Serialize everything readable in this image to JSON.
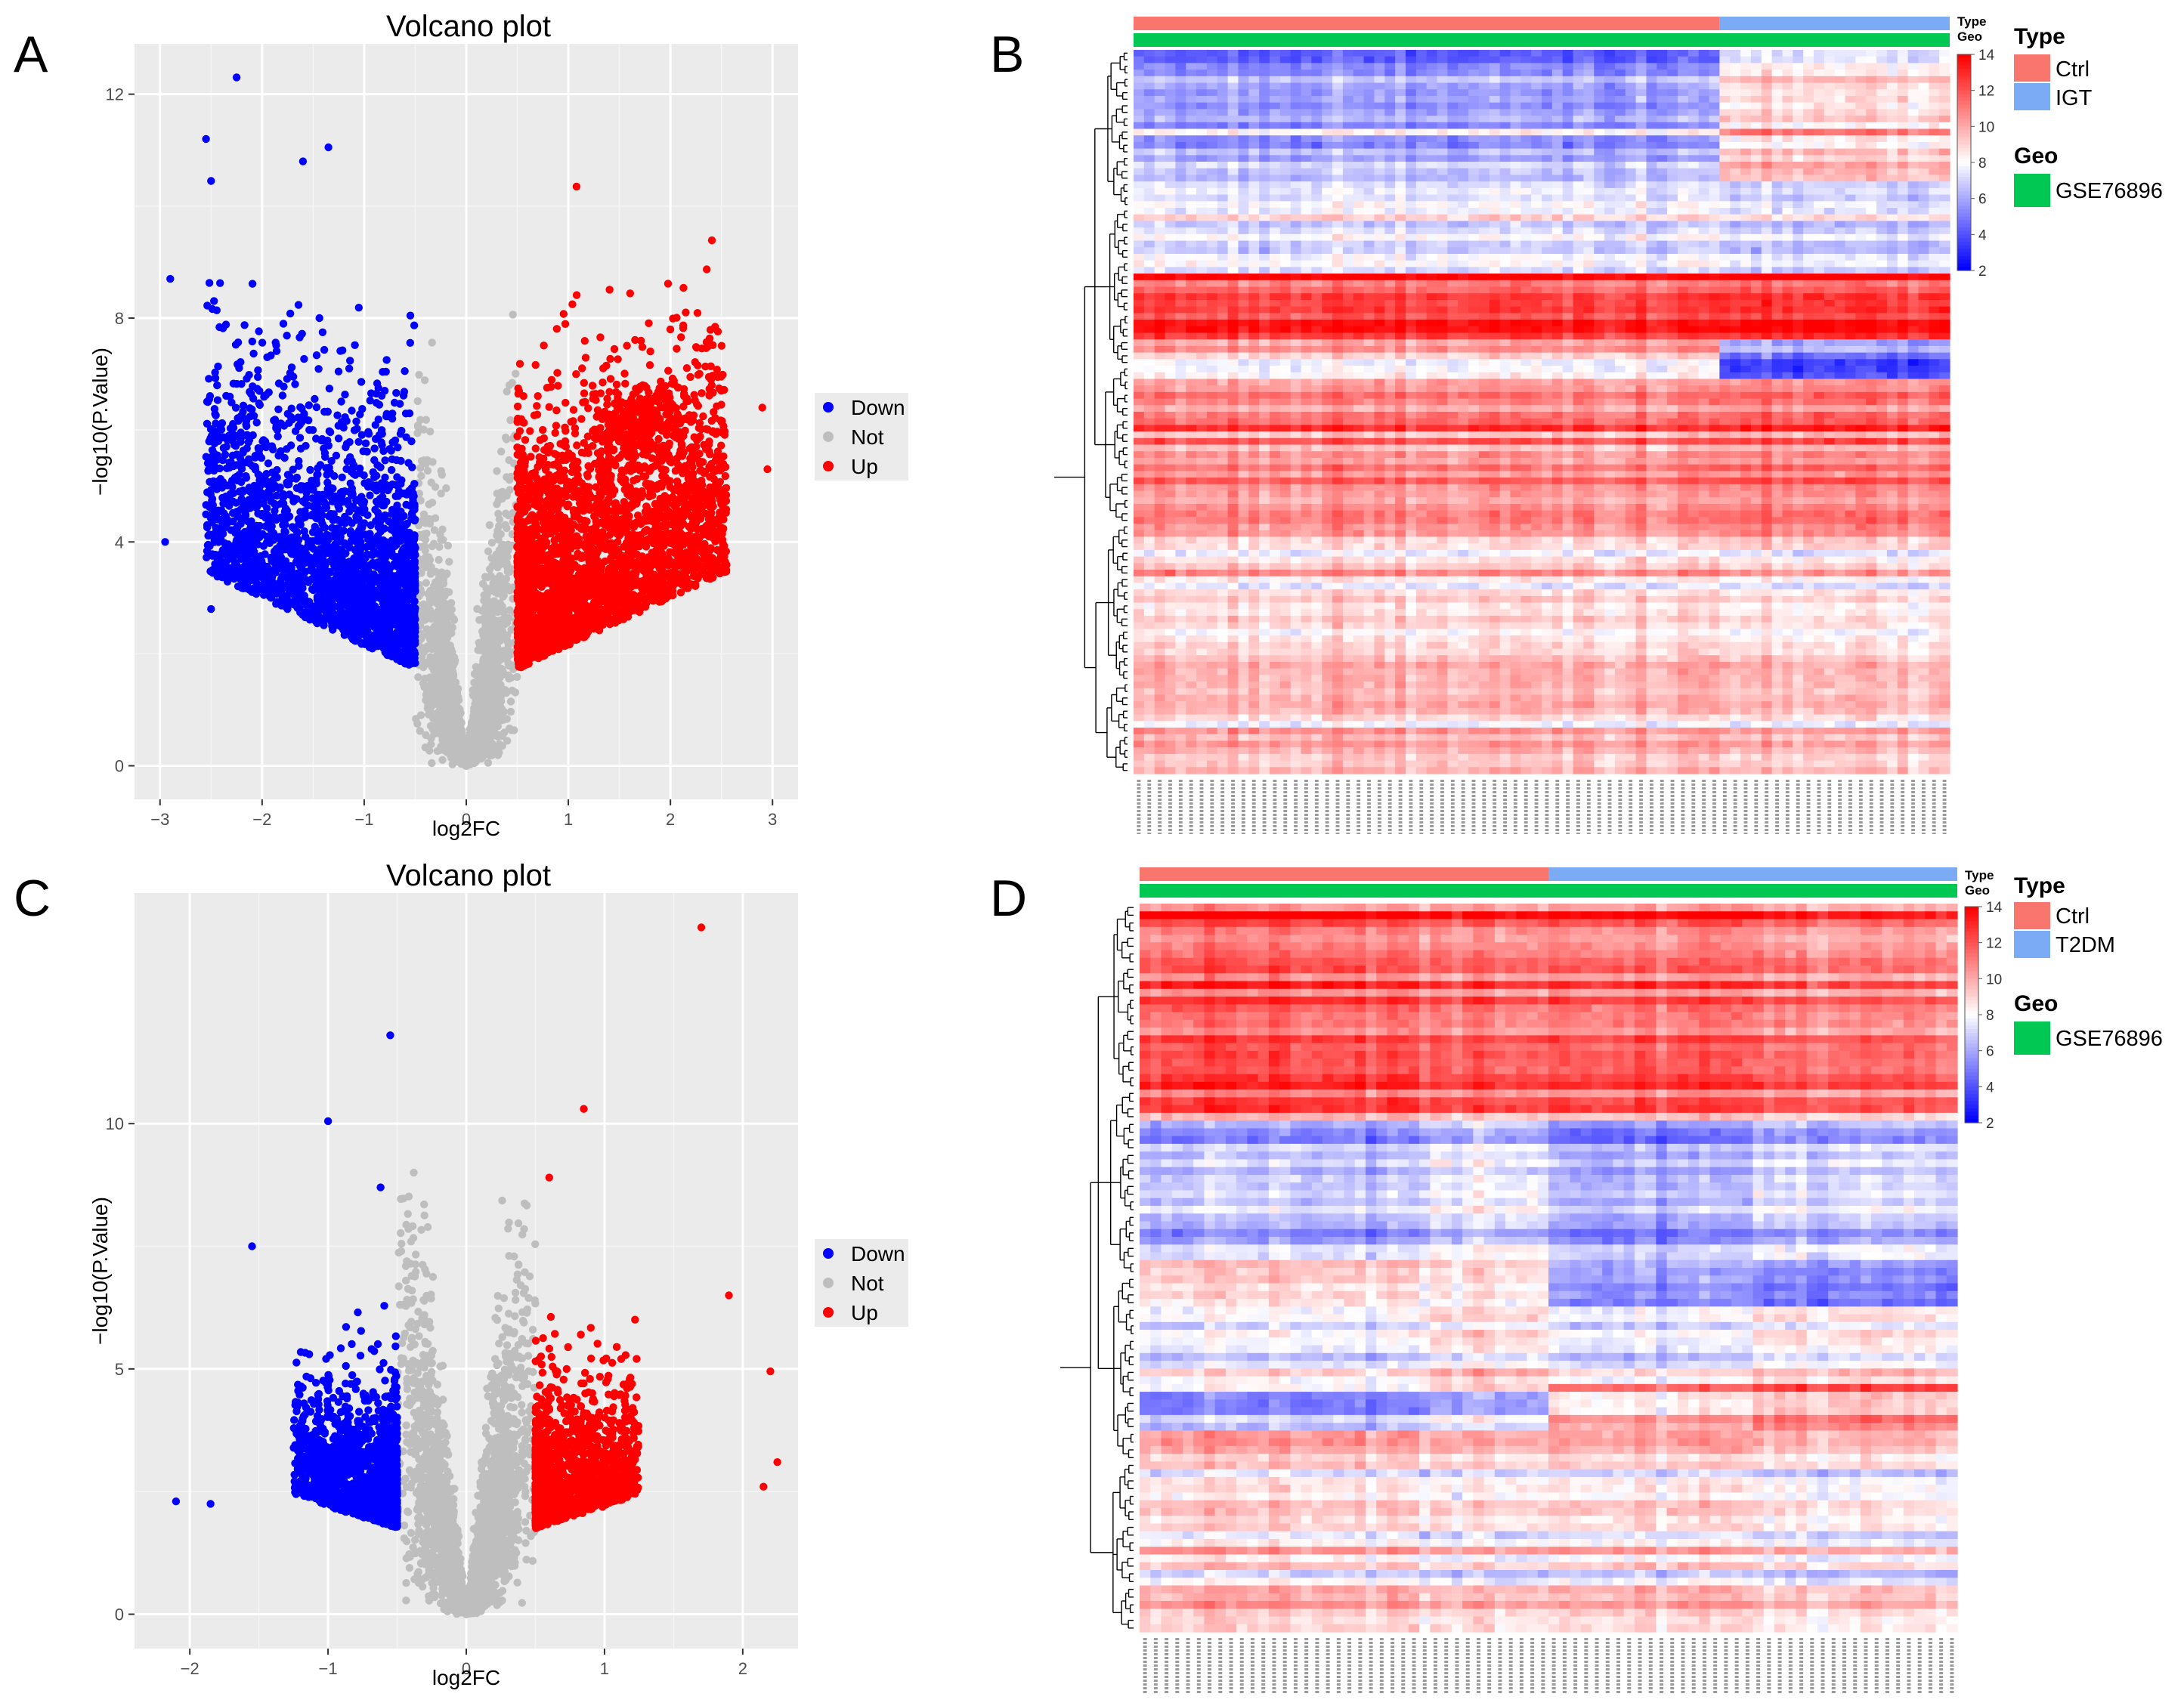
{
  "colors": {
    "down": "#0000ff",
    "not": "#bebebe",
    "up": "#ff0000",
    "panel_bg": "#ebebeb",
    "grid": "#ffffff",
    "ctrl": "#f8766d",
    "igt": "#7cabf5",
    "t2dm": "#7cabf5",
    "geo": "#00c853",
    "heat_low": "#0000ff",
    "heat_mid": "#ffffff",
    "heat_high": "#ff0000"
  },
  "panels": {
    "a": {
      "letter": "A"
    },
    "b": {
      "letter": "B"
    },
    "c": {
      "letter": "C"
    },
    "d": {
      "letter": "D"
    }
  },
  "chart_data": [
    {
      "panel": "A",
      "type": "scatter",
      "title": "Volcano plot",
      "xlabel": "log2FC",
      "ylabel": "−log10(P.Value)",
      "xlim": [
        -3.25,
        3.25
      ],
      "ylim": [
        -0.6,
        12.9
      ],
      "xticks": [
        -3,
        -2,
        -1,
        0,
        1,
        2,
        3
      ],
      "xtick_labels": [
        "−3",
        "−2",
        "−1",
        "0",
        "1",
        "2",
        "3"
      ],
      "yticks": [
        0,
        4,
        8,
        12
      ],
      "ytick_labels": [
        "0",
        "4",
        "8",
        "12"
      ],
      "legend": {
        "position": "right",
        "entries": [
          "Down",
          "Not",
          "Up"
        ]
      },
      "fc_threshold": 0.5,
      "approx_counts": {
        "Down": 2300,
        "Not": 2600,
        "Up": 2800
      },
      "notable_points": [
        {
          "name": "Down",
          "x": -2.25,
          "y": 12.3
        },
        {
          "name": "Down",
          "x": -2.55,
          "y": 11.2
        },
        {
          "name": "Down",
          "x": -1.35,
          "y": 11.05
        },
        {
          "name": "Down",
          "x": -1.6,
          "y": 10.8
        },
        {
          "name": "Down",
          "x": -2.5,
          "y": 10.45
        },
        {
          "name": "Down",
          "x": -2.9,
          "y": 8.7
        },
        {
          "name": "Down",
          "x": -2.95,
          "y": 4.0
        },
        {
          "name": "Down",
          "x": -2.5,
          "y": 2.8
        },
        {
          "name": "Up",
          "x": 1.08,
          "y": 10.35
        },
        {
          "name": "Up",
          "x": 2.95,
          "y": 5.3
        },
        {
          "name": "Up",
          "x": 2.9,
          "y": 6.4
        },
        {
          "name": "Up",
          "x": 2.15,
          "y": 8.1
        }
      ]
    },
    {
      "panel": "C",
      "type": "scatter",
      "title": "Volcano plot",
      "xlabel": "log2FC",
      "ylabel": "−log10(P.Value)",
      "xlim": [
        -2.4,
        2.4
      ],
      "ylim": [
        -0.7,
        14.7
      ],
      "xticks": [
        -2,
        -1,
        0,
        1,
        2
      ],
      "xtick_labels": [
        "−2",
        "−1",
        "0",
        "1",
        "2"
      ],
      "yticks": [
        0,
        5,
        10
      ],
      "ytick_labels": [
        "0",
        "5",
        "10"
      ],
      "legend": {
        "position": "right",
        "entries": [
          "Down",
          "Not",
          "Up"
        ]
      },
      "fc_threshold": 0.5,
      "approx_counts": {
        "Down": 1300,
        "Not": 3200,
        "Up": 1300
      },
      "notable_points": [
        {
          "name": "Up",
          "x": 1.7,
          "y": 14.0
        },
        {
          "name": "Down",
          "x": -0.55,
          "y": 11.8
        },
        {
          "name": "Down",
          "x": -1.0,
          "y": 10.05
        },
        {
          "name": "Up",
          "x": 0.85,
          "y": 10.3
        },
        {
          "name": "Up",
          "x": 0.6,
          "y": 8.9
        },
        {
          "name": "Not",
          "x": -0.38,
          "y": 9.0
        },
        {
          "name": "Down",
          "x": -0.62,
          "y": 8.7
        },
        {
          "name": "Down",
          "x": -1.55,
          "y": 7.5
        },
        {
          "name": "Down",
          "x": -2.1,
          "y": 2.3
        },
        {
          "name": "Down",
          "x": -1.85,
          "y": 2.25
        },
        {
          "name": "Up",
          "x": 2.2,
          "y": 4.95
        },
        {
          "name": "Up",
          "x": 2.25,
          "y": 3.1
        },
        {
          "name": "Up",
          "x": 2.15,
          "y": 2.6
        },
        {
          "name": "Up",
          "x": 1.9,
          "y": 6.5
        }
      ]
    },
    {
      "panel": "B",
      "type": "heatmap",
      "annotation_labels": [
        "Type",
        "Geo"
      ],
      "groups": [
        {
          "name": "Ctrl",
          "columns": 56
        },
        {
          "name": "IGT",
          "columns": 22
        }
      ],
      "geo_series": "GSE76896",
      "color_scale": {
        "min": 2,
        "max": 14,
        "ticks": [
          2,
          4,
          6,
          8,
          10,
          12,
          14
        ]
      },
      "legend": {
        "type_title": "Type",
        "type_entries": [
          "Ctrl",
          "IGT"
        ],
        "geo_title": "Geo",
        "geo_entries": [
          "GSE76896"
        ]
      },
      "row_blocks": [
        {
          "name": "block1",
          "rows": 20,
          "ctrl_level": 6.0,
          "case_level": 9.0
        },
        {
          "name": "block2",
          "rows": 14,
          "ctrl_level": 7.5,
          "case_level": 7.0
        },
        {
          "name": "block3",
          "rows": 10,
          "ctrl_level": 12.8,
          "case_level": 13.0
        },
        {
          "name": "block4",
          "rows": 6,
          "ctrl_level": 9.6,
          "case_level": 5.2
        },
        {
          "name": "block5",
          "rows": 26,
          "ctrl_level": 11.0,
          "case_level": 11.3
        },
        {
          "name": "block6",
          "rows": 14,
          "ctrl_level": 8.6,
          "case_level": 8.2
        },
        {
          "name": "block7",
          "rows": 20,
          "ctrl_level": 9.8,
          "case_level": 9.5
        }
      ]
    },
    {
      "panel": "D",
      "type": "heatmap",
      "annotation_labels": [
        "Type",
        "Geo"
      ],
      "groups": [
        {
          "name": "Ctrl",
          "columns": 38
        },
        {
          "name": "T2DM",
          "columns": 38
        }
      ],
      "geo_series": "GSE76896",
      "color_scale": {
        "min": 2,
        "max": 14,
        "ticks": [
          2,
          4,
          6,
          8,
          10,
          12,
          14
        ]
      },
      "legend": {
        "type_title": "Type",
        "type_entries": [
          "Ctrl",
          "T2DM"
        ],
        "geo_title": "Geo",
        "geo_entries": [
          "GSE76896"
        ]
      },
      "row_blocks": [
        {
          "name": "block1",
          "rows": 28,
          "ctrl_level": 12.0,
          "case_level": 11.7
        },
        {
          "name": "block2",
          "rows": 18,
          "ctrl_level": 6.5,
          "case_level": 6.0
        },
        {
          "name": "block3",
          "rows": 6,
          "ctrl_level": 9.3,
          "case_level": 5.8
        },
        {
          "name": "block4",
          "rows": 10,
          "ctrl_level": 7.2,
          "case_level": 7.0
        },
        {
          "name": "block5",
          "rows": 6,
          "ctrl_level": 5.5,
          "case_level": 9.0
        },
        {
          "name": "block6",
          "rows": 26,
          "ctrl_level": 9.6,
          "case_level": 9.4
        }
      ]
    }
  ]
}
